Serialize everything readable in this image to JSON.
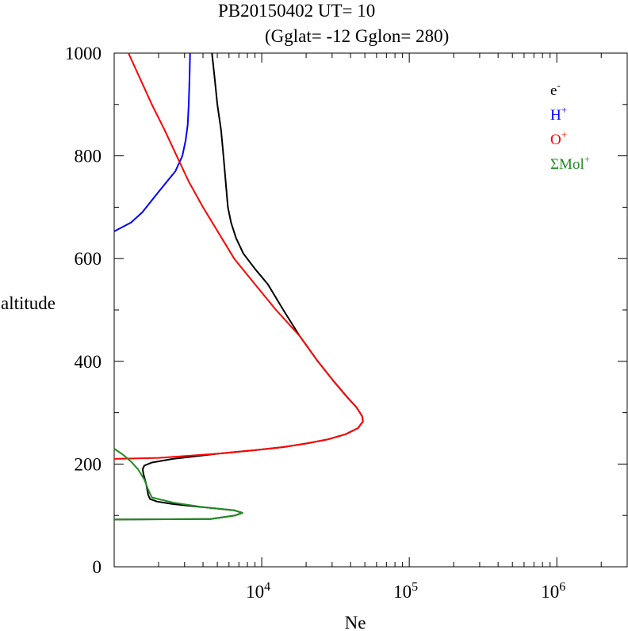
{
  "chart_data": {
    "type": "line",
    "title": "PB20150402   UT=  10",
    "subtitle": "(Gglat= -12   Gglon=  280)",
    "xlabel": "Ne",
    "ylabel": "altitude",
    "x_scale": "log",
    "xlim": [
      1000,
      3000000
    ],
    "ylim": [
      0,
      1000
    ],
    "x_tick_labels": [
      {
        "base": "10",
        "exp": "4",
        "value": 10000
      },
      {
        "base": "10",
        "exp": "5",
        "value": 100000
      },
      {
        "base": "10",
        "exp": "6",
        "value": 1000000
      }
    ],
    "y_ticks": [
      0,
      200,
      400,
      600,
      800,
      1000
    ],
    "y_tick_labels": [
      "0",
      "200",
      "400",
      "600",
      "800",
      "1000"
    ],
    "grid": false,
    "legend_position": "top-right",
    "series": [
      {
        "name": "e",
        "sup": "-",
        "color": "#000000",
        "points": [
          [
            1000,
            92
          ],
          [
            4500,
            93
          ],
          [
            6600,
            100
          ],
          [
            7400,
            105
          ],
          [
            6500,
            110
          ],
          [
            4000,
            116
          ],
          [
            2500,
            122
          ],
          [
            1950,
            127
          ],
          [
            1750,
            132
          ],
          [
            1700,
            140
          ],
          [
            1650,
            160
          ],
          [
            1580,
            180
          ],
          [
            1560,
            190
          ],
          [
            1600,
            197
          ],
          [
            1800,
            203
          ],
          [
            2500,
            210
          ],
          [
            5000,
            220
          ],
          [
            9000,
            227
          ],
          [
            14000,
            233
          ],
          [
            20000,
            240
          ],
          [
            28000,
            248
          ],
          [
            37000,
            258
          ],
          [
            45000,
            270
          ],
          [
            48500,
            283
          ],
          [
            48000,
            293
          ],
          [
            44000,
            310
          ],
          [
            38000,
            330
          ],
          [
            31000,
            360
          ],
          [
            24000,
            400
          ],
          [
            18000,
            450
          ],
          [
            14000,
            500
          ],
          [
            11000,
            550
          ],
          [
            9000,
            580
          ],
          [
            7500,
            610
          ],
          [
            6700,
            640
          ],
          [
            6200,
            670
          ],
          [
            5900,
            700
          ],
          [
            5700,
            750
          ],
          [
            5500,
            800
          ],
          [
            5300,
            850
          ],
          [
            5000,
            900
          ],
          [
            4800,
            950
          ],
          [
            4600,
            1000
          ]
        ]
      },
      {
        "name": "H",
        "sup": "+",
        "color": "#0000ff",
        "points": [
          [
            1000,
            653
          ],
          [
            1300,
            670
          ],
          [
            1550,
            690
          ],
          [
            2000,
            730
          ],
          [
            2600,
            770
          ],
          [
            2900,
            800
          ],
          [
            3050,
            830
          ],
          [
            3150,
            860
          ],
          [
            3200,
            900
          ],
          [
            3240,
            950
          ],
          [
            3270,
            1000
          ]
        ]
      },
      {
        "name": "O",
        "sup": "+",
        "color": "#ff0000",
        "points": [
          [
            1000,
            210
          ],
          [
            2000,
            212
          ],
          [
            5000,
            220
          ],
          [
            9000,
            227
          ],
          [
            14000,
            233
          ],
          [
            20000,
            240
          ],
          [
            28000,
            248
          ],
          [
            37000,
            258
          ],
          [
            45000,
            270
          ],
          [
            48500,
            283
          ],
          [
            48000,
            293
          ],
          [
            44000,
            310
          ],
          [
            38000,
            330
          ],
          [
            31000,
            360
          ],
          [
            24000,
            400
          ],
          [
            18000,
            450
          ],
          [
            12500,
            500
          ],
          [
            9000,
            550
          ],
          [
            6500,
            600
          ],
          [
            5100,
            650
          ],
          [
            4000,
            700
          ],
          [
            3200,
            750
          ],
          [
            2650,
            800
          ],
          [
            2200,
            850
          ],
          [
            1800,
            900
          ],
          [
            1500,
            950
          ],
          [
            1250,
            1000
          ]
        ]
      },
      {
        "name": "ΣMol",
        "sup": "+",
        "color": "#228b22",
        "points": [
          [
            1000,
            230
          ],
          [
            1150,
            218
          ],
          [
            1300,
            205
          ],
          [
            1450,
            190
          ],
          [
            1600,
            170
          ],
          [
            1700,
            150
          ],
          [
            1800,
            135
          ],
          [
            2500,
            125
          ],
          [
            4000,
            116
          ],
          [
            6500,
            110
          ],
          [
            7400,
            105
          ],
          [
            6600,
            100
          ],
          [
            4500,
            93
          ],
          [
            1000,
            92
          ]
        ]
      }
    ]
  }
}
